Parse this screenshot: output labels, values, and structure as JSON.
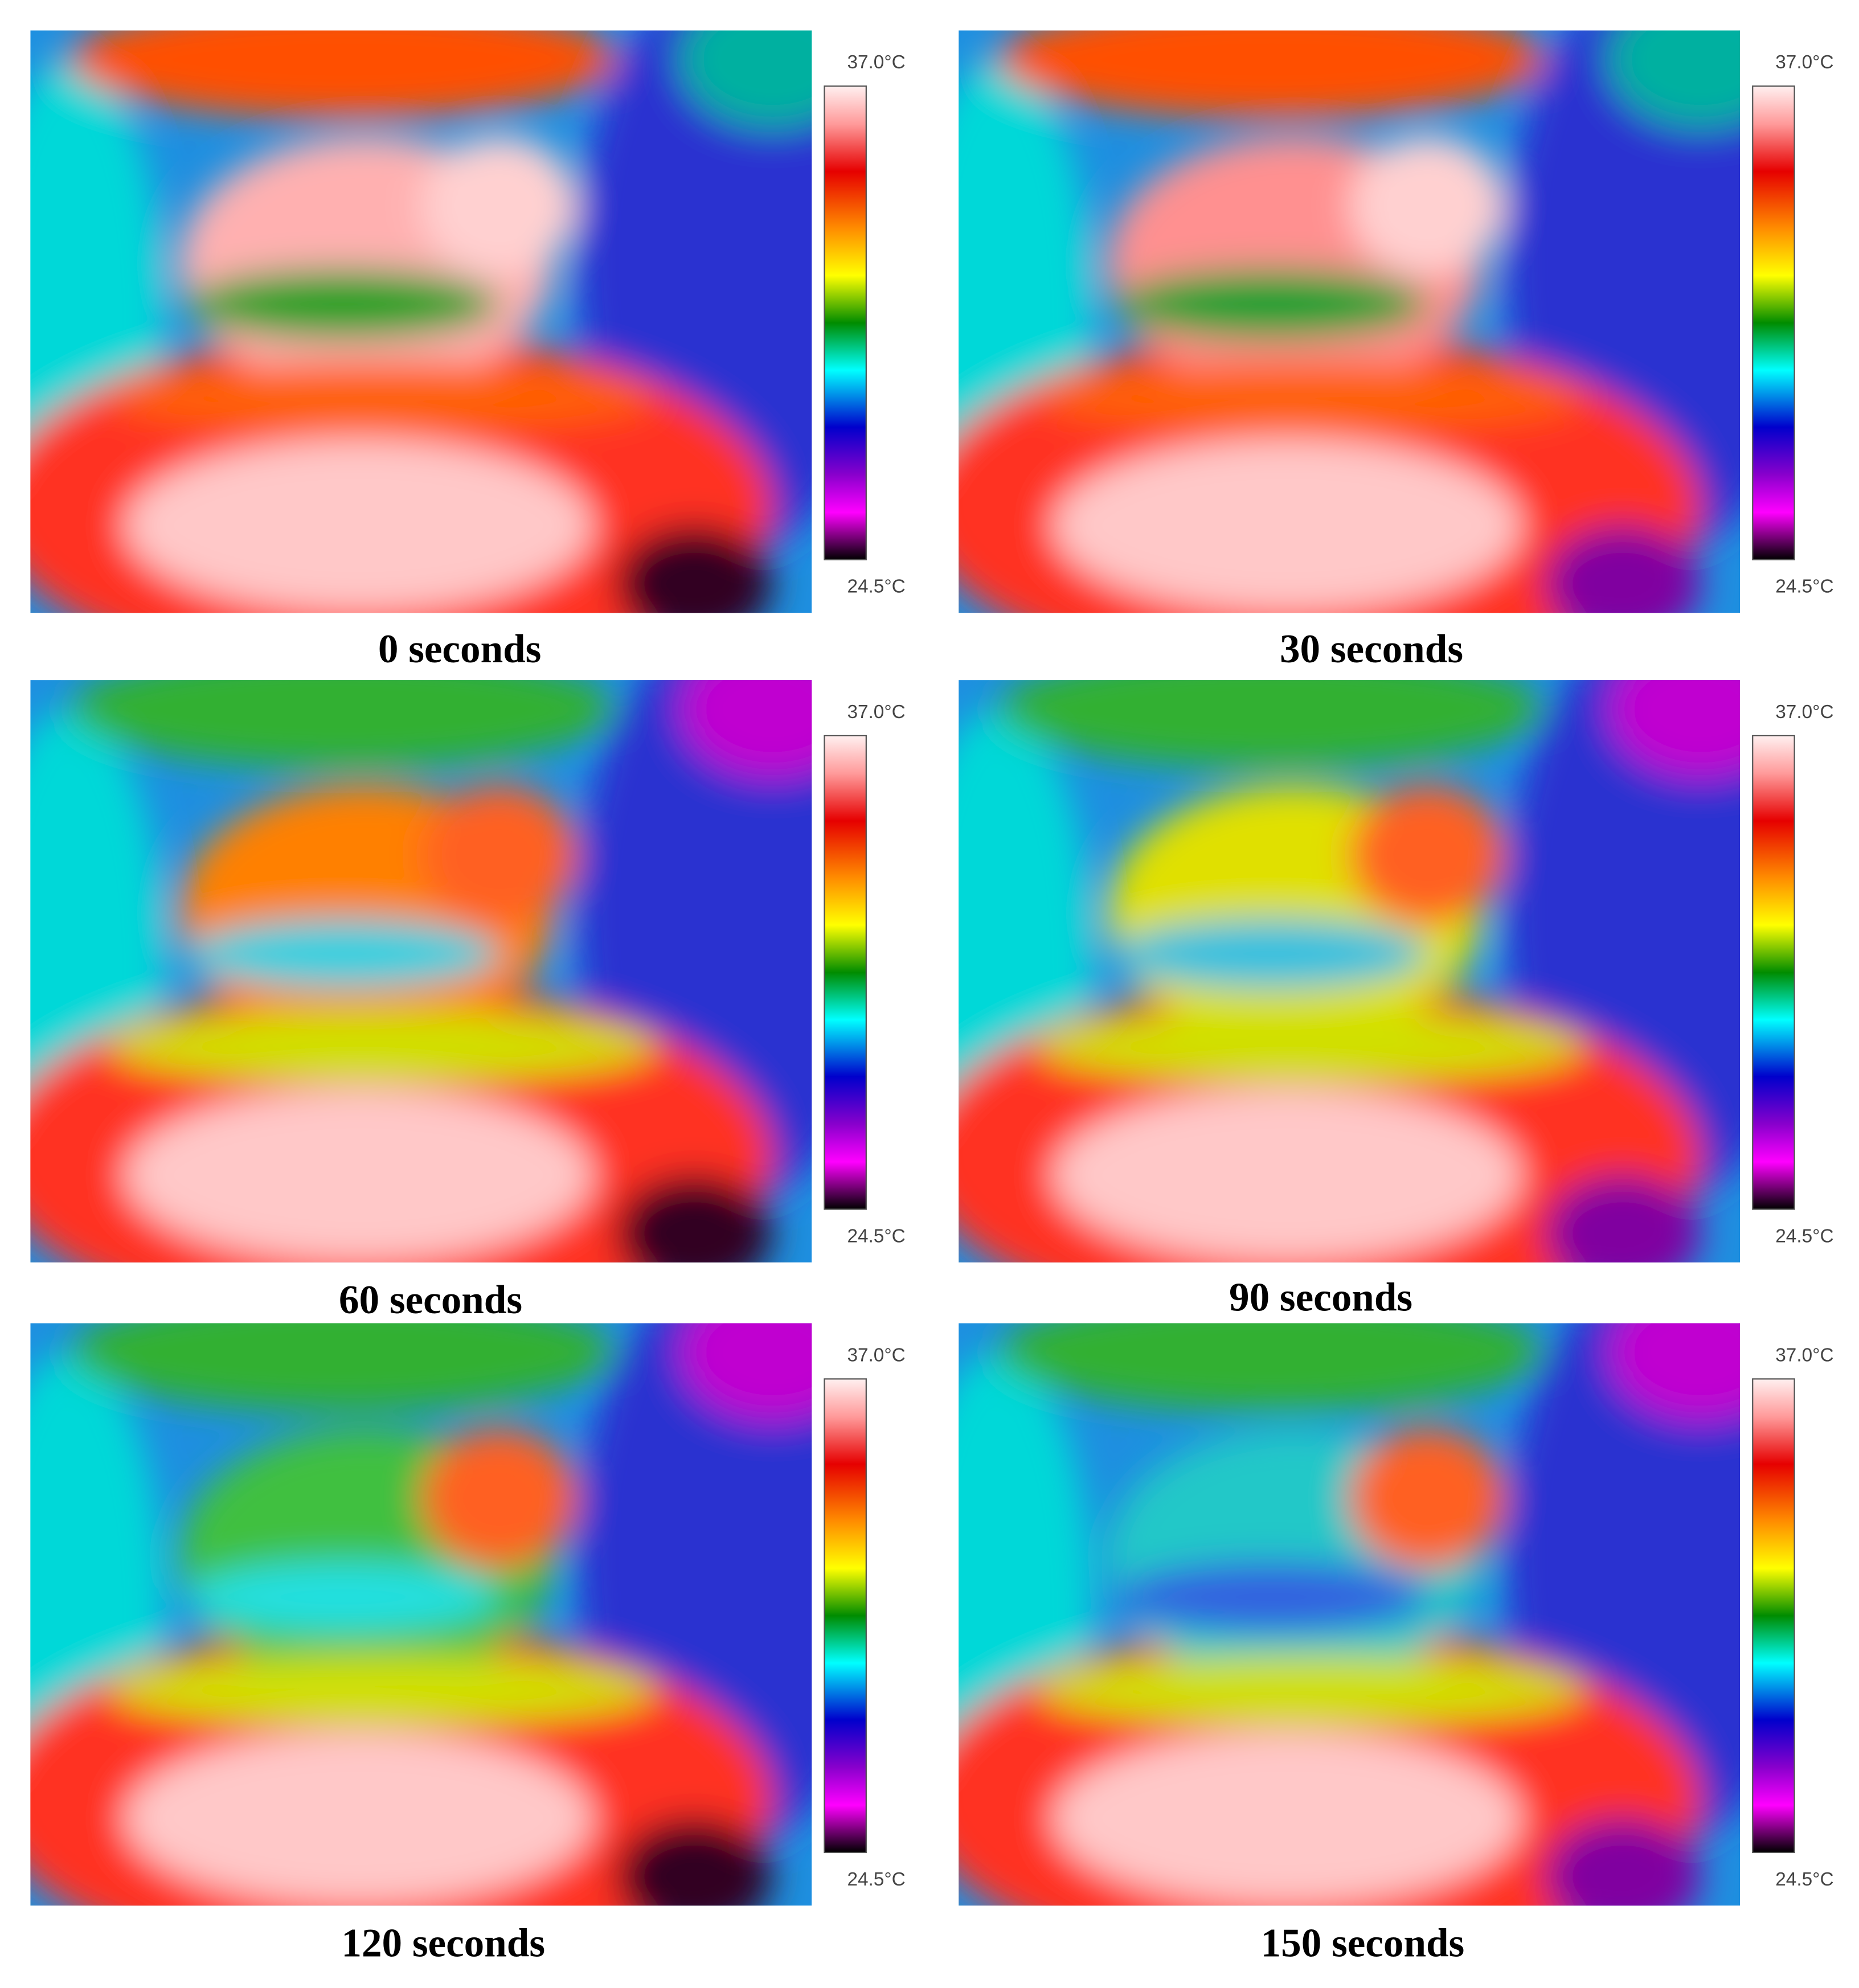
{
  "panels": [
    {
      "caption": "0 seconds",
      "scale_max": "37.0°C",
      "scale_min": "24.5°C"
    },
    {
      "caption": "30 seconds",
      "scale_max": "37.0°C",
      "scale_min": "24.5°C"
    },
    {
      "caption": "60 seconds",
      "scale_max": "37.0°C",
      "scale_min": "24.5°C"
    },
    {
      "caption": "90 seconds",
      "scale_max": "37.0°C",
      "scale_min": "24.5°C"
    },
    {
      "caption": "120 seconds",
      "scale_max": "37.0°C",
      "scale_min": "24.5°C"
    },
    {
      "caption": "150 seconds",
      "scale_max": "37.0°C",
      "scale_min": "24.5°C"
    }
  ]
}
